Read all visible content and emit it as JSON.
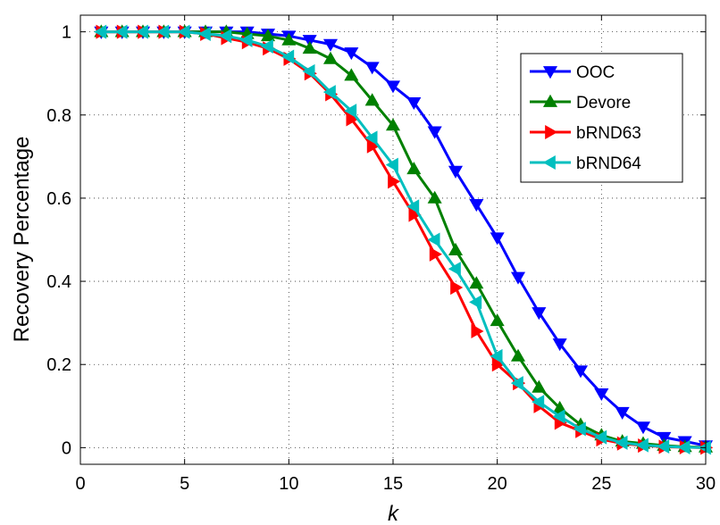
{
  "chart_data": {
    "type": "line",
    "title": "",
    "xlabel": "k",
    "ylabel": "Recovery Percentage",
    "xlim": [
      0,
      30
    ],
    "ylim": [
      -0.04,
      1.04
    ],
    "xticks": [
      0,
      5,
      10,
      15,
      20,
      25,
      30
    ],
    "yticks": [
      0,
      0.2,
      0.4,
      0.6,
      0.8,
      1
    ],
    "xtick_labels": [
      "0",
      "5",
      "10",
      "15",
      "20",
      "25",
      "30"
    ],
    "ytick_labels": [
      "0",
      "0.2",
      "0.4",
      "0.6",
      "0.8",
      "1"
    ],
    "grid": true,
    "legend_position": "top-right",
    "x": [
      1,
      2,
      3,
      4,
      5,
      6,
      7,
      8,
      9,
      10,
      11,
      12,
      13,
      14,
      15,
      16,
      17,
      18,
      19,
      20,
      21,
      22,
      23,
      24,
      25,
      26,
      27,
      28,
      29,
      30
    ],
    "series": [
      {
        "name": "OOC",
        "color": "#0000ff",
        "marker": "triangle-down",
        "values": [
          1,
          1,
          1,
          1,
          1,
          1,
          1,
          1,
          0.995,
          0.99,
          0.98,
          0.97,
          0.95,
          0.915,
          0.87,
          0.83,
          0.76,
          0.665,
          0.585,
          0.505,
          0.41,
          0.325,
          0.25,
          0.185,
          0.13,
          0.085,
          0.05,
          0.025,
          0.015,
          0.005
        ]
      },
      {
        "name": "Devore",
        "color": "#008000",
        "marker": "triangle-up",
        "values": [
          1,
          1,
          1,
          1,
          1,
          1,
          1,
          0.995,
          0.99,
          0.98,
          0.96,
          0.935,
          0.895,
          0.835,
          0.775,
          0.67,
          0.6,
          0.475,
          0.395,
          0.305,
          0.22,
          0.145,
          0.095,
          0.055,
          0.03,
          0.015,
          0.01,
          0.005,
          0.002,
          0.001
        ]
      },
      {
        "name": "bRND63",
        "color": "#ff0000",
        "marker": "triangle-right",
        "values": [
          1,
          1,
          1,
          1,
          1,
          0.995,
          0.985,
          0.975,
          0.96,
          0.935,
          0.9,
          0.85,
          0.79,
          0.725,
          0.64,
          0.56,
          0.465,
          0.385,
          0.28,
          0.2,
          0.155,
          0.1,
          0.06,
          0.04,
          0.02,
          0.01,
          0.005,
          0.002,
          0.001,
          0
        ]
      },
      {
        "name": "bRND64",
        "color": "#00bfbf",
        "marker": "triangle-left",
        "values": [
          1,
          1,
          1,
          1,
          1,
          0.995,
          0.99,
          0.98,
          0.965,
          0.94,
          0.905,
          0.855,
          0.81,
          0.745,
          0.68,
          0.58,
          0.5,
          0.43,
          0.35,
          0.22,
          0.155,
          0.11,
          0.075,
          0.045,
          0.025,
          0.012,
          0.006,
          0.003,
          0.001,
          0
        ]
      }
    ]
  }
}
